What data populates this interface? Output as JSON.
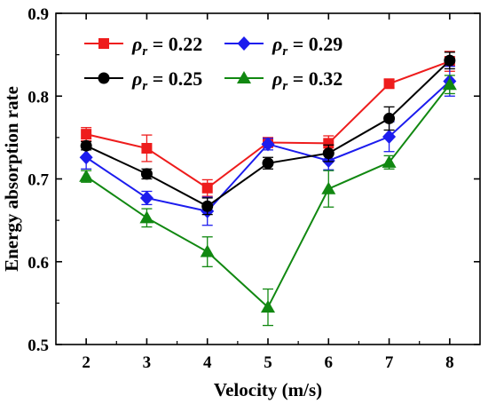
{
  "chart_data": {
    "type": "line",
    "xlabel": "Velocity (m/s)",
    "ylabel": "Energy absorption rate",
    "xlim": [
      1.5,
      8.5
    ],
    "ylim": [
      0.5,
      0.9
    ],
    "x_ticks": [
      2,
      3,
      4,
      5,
      6,
      7,
      8
    ],
    "y_ticks": [
      0.5,
      0.6,
      0.7,
      0.8,
      0.9
    ],
    "x_tick_labels": [
      "2",
      "3",
      "4",
      "5",
      "6",
      "7",
      "8"
    ],
    "y_tick_labels": [
      "0.5",
      "0.6",
      "0.7",
      "0.8",
      "0.9"
    ],
    "legend_placement": "top-left",
    "grid": false,
    "x": [
      2,
      3,
      4,
      5,
      6,
      7,
      8
    ],
    "series": [
      {
        "name": "ρr = 0.22",
        "symbol": "ρ",
        "subscript": "r",
        "value_text": " = 0.22",
        "color": "#ee1c1c",
        "marker": "square",
        "values": [
          0.754,
          0.737,
          0.689,
          0.744,
          0.743,
          0.815,
          0.842
        ],
        "errors": [
          0.008,
          0.016,
          0.01,
          0.006,
          0.009,
          0.005,
          0.012
        ]
      },
      {
        "name": "ρr = 0.29",
        "symbol": "ρ",
        "subscript": "r",
        "value_text": " = 0.29",
        "color": "#1c1cee",
        "marker": "diamond",
        "values": [
          0.726,
          0.677,
          0.661,
          0.742,
          0.722,
          0.751,
          0.818
        ],
        "errors": [
          0.014,
          0.008,
          0.017,
          0.007,
          0.011,
          0.018,
          0.018
        ]
      },
      {
        "name": "ρr = 0.25",
        "symbol": "ρ",
        "subscript": "r",
        "value_text": " = 0.25",
        "color": "#000000",
        "marker": "circle",
        "values": [
          0.74,
          0.706,
          0.667,
          0.719,
          0.731,
          0.773,
          0.843
        ],
        "errors": [
          0.005,
          0.006,
          0.01,
          0.007,
          0.01,
          0.014,
          0.01
        ]
      },
      {
        "name": "ρr = 0.32",
        "symbol": "ρ",
        "subscript": "r",
        "value_text": " = 0.32",
        "color": "#118811",
        "marker": "triangle",
        "values": [
          0.703,
          0.653,
          0.612,
          0.545,
          0.688,
          0.72,
          0.814
        ],
        "errors": [
          0.007,
          0.011,
          0.018,
          0.022,
          0.022,
          0.008,
          0.011
        ]
      }
    ]
  }
}
